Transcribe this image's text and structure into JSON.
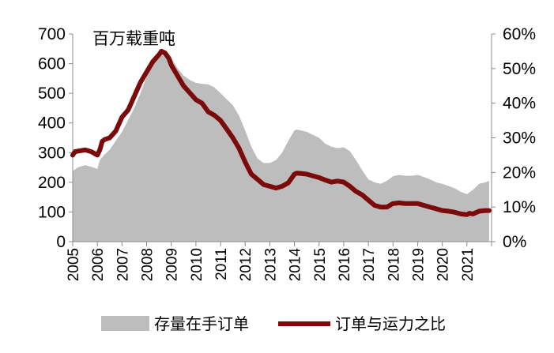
{
  "chart_data": {
    "type": "area+line",
    "unit_label": "百万载重吨",
    "x_range": [
      2005,
      2022
    ],
    "x_tick_labels": [
      "2005",
      "2006",
      "2007",
      "2008",
      "2009",
      "2010",
      "2011",
      "2012",
      "2013",
      "2014",
      "2015",
      "2016",
      "2017",
      "2018",
      "2019",
      "2020",
      "2021"
    ],
    "left_axis": {
      "range": [
        0,
        700
      ],
      "tick_labels": [
        "0",
        "100",
        "200",
        "300",
        "400",
        "500",
        "600",
        "700"
      ],
      "tick_values": [
        0,
        100,
        200,
        300,
        400,
        500,
        600,
        700
      ]
    },
    "right_axis": {
      "range": [
        0,
        0.6
      ],
      "tick_labels": [
        "0%",
        "10%",
        "20%",
        "30%",
        "40%",
        "50%",
        "60%"
      ],
      "tick_values": [
        0,
        0.1,
        0.2,
        0.3,
        0.4,
        0.5,
        0.6
      ]
    },
    "colors": {
      "area": "#bdbdbd",
      "line": "#7b0a0a",
      "axis": "#8c8c8c"
    },
    "series": [
      {
        "name": "存量在手订单",
        "type": "area",
        "axis": "left",
        "x": [
          2005.0,
          2005.2,
          2005.5,
          2005.75,
          2006.0,
          2006.1,
          2006.25,
          2006.5,
          2006.75,
          2007.0,
          2007.25,
          2007.5,
          2007.75,
          2008.0,
          2008.25,
          2008.5,
          2008.75,
          2008.9,
          2009.0,
          2009.25,
          2009.5,
          2009.75,
          2010.0,
          2010.25,
          2010.5,
          2010.75,
          2011.0,
          2011.25,
          2011.5,
          2011.75,
          2012.0,
          2012.25,
          2012.5,
          2012.75,
          2013.0,
          2013.25,
          2013.5,
          2013.75,
          2014.0,
          2014.1,
          2014.25,
          2014.5,
          2014.75,
          2015.0,
          2015.25,
          2015.5,
          2015.75,
          2016.0,
          2016.25,
          2016.5,
          2016.75,
          2017.0,
          2017.25,
          2017.5,
          2017.75,
          2018.0,
          2018.25,
          2018.5,
          2018.75,
          2019.0,
          2019.25,
          2019.5,
          2019.75,
          2020.0,
          2020.25,
          2020.5,
          2020.75,
          2021.0,
          2021.25,
          2021.5,
          2021.75,
          2021.9
        ],
        "values": [
          238,
          250,
          258,
          252,
          245,
          275,
          290,
          310,
          340,
          370,
          410,
          450,
          500,
          555,
          595,
          625,
          635,
          630,
          620,
          585,
          560,
          545,
          535,
          532,
          530,
          520,
          500,
          480,
          460,
          425,
          375,
          320,
          280,
          265,
          265,
          275,
          300,
          340,
          375,
          378,
          375,
          370,
          360,
          350,
          330,
          320,
          315,
          318,
          305,
          275,
          240,
          210,
          200,
          195,
          205,
          220,
          225,
          222,
          222,
          225,
          218,
          210,
          200,
          195,
          188,
          180,
          168,
          160,
          175,
          195,
          200,
          205
        ]
      },
      {
        "name": "订单与运力之比",
        "type": "line",
        "axis": "right",
        "x": [
          2005.0,
          2005.1,
          2005.25,
          2005.5,
          2005.75,
          2006.0,
          2006.1,
          2006.2,
          2006.3,
          2006.5,
          2006.75,
          2007.0,
          2007.25,
          2007.5,
          2007.75,
          2008.0,
          2008.25,
          2008.5,
          2008.6,
          2008.75,
          2008.9,
          2009.0,
          2009.25,
          2009.5,
          2009.75,
          2010.0,
          2010.25,
          2010.5,
          2010.75,
          2011.0,
          2011.25,
          2011.5,
          2011.75,
          2012.0,
          2012.25,
          2012.5,
          2012.75,
          2013.0,
          2013.25,
          2013.5,
          2013.75,
          2014.0,
          2014.1,
          2014.25,
          2014.5,
          2014.75,
          2015.0,
          2015.25,
          2015.5,
          2015.75,
          2016.0,
          2016.25,
          2016.5,
          2016.75,
          2017.0,
          2017.25,
          2017.5,
          2017.75,
          2018.0,
          2018.25,
          2018.5,
          2018.75,
          2019.0,
          2019.25,
          2019.5,
          2019.75,
          2020.0,
          2020.25,
          2020.5,
          2020.75,
          2021.0,
          2021.1,
          2021.25,
          2021.5,
          2021.75,
          2021.9
        ],
        "values": [
          0.25,
          0.26,
          0.262,
          0.265,
          0.26,
          0.25,
          0.265,
          0.29,
          0.295,
          0.3,
          0.32,
          0.36,
          0.38,
          0.42,
          0.46,
          0.49,
          0.52,
          0.54,
          0.55,
          0.545,
          0.53,
          0.51,
          0.48,
          0.45,
          0.43,
          0.41,
          0.4,
          0.375,
          0.365,
          0.35,
          0.325,
          0.3,
          0.27,
          0.23,
          0.195,
          0.18,
          0.165,
          0.16,
          0.155,
          0.16,
          0.17,
          0.195,
          0.198,
          0.197,
          0.195,
          0.19,
          0.185,
          0.178,
          0.172,
          0.175,
          0.172,
          0.16,
          0.145,
          0.135,
          0.12,
          0.105,
          0.1,
          0.1,
          0.11,
          0.112,
          0.11,
          0.11,
          0.11,
          0.105,
          0.1,
          0.095,
          0.09,
          0.088,
          0.085,
          0.08,
          0.078,
          0.082,
          0.08,
          0.088,
          0.09,
          0.09
        ]
      }
    ]
  }
}
